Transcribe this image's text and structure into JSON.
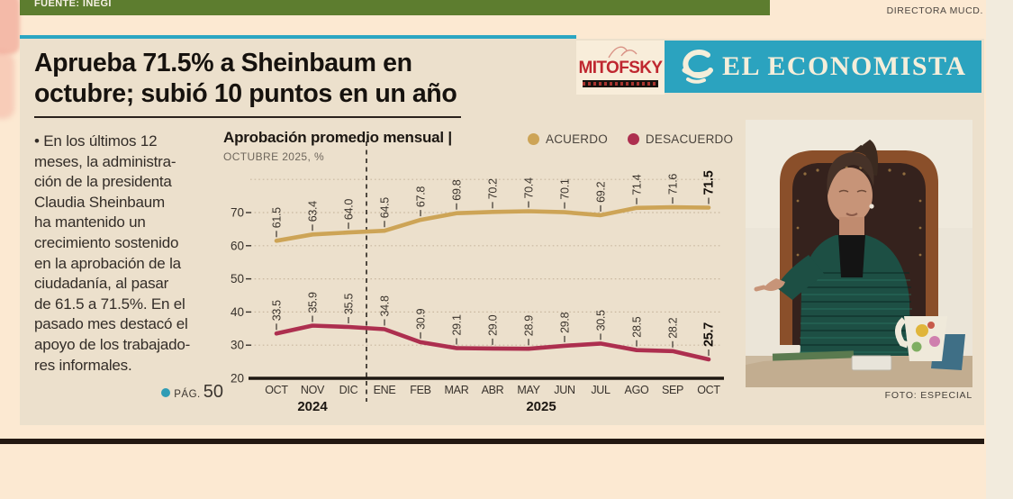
{
  "page": {
    "top_bar_label": "FUENTE: INEGI",
    "top_right_credit": "DIRECTORA MUCD.",
    "headline": "Aprueba 71.5% a Sheinbaum en\noctubre; subió 10 puntos en un año",
    "body_text": "• En los últimos 12\nmeses, la administra-\nción de la presidenta\nClaudia Sheinbaum\nha mantenido un\ncrecimiento sostenido\nen la aprobación de la\nciudadanía, al pasar\nde 61.5 a 71.5%. En el\npasado mes destacó el\napoyo de los trabajado-\nres informales.",
    "page_ref": {
      "label": "PÁG.",
      "number": "50"
    },
    "photo_caption": "FOTO: ESPECIAL",
    "logos": {
      "mitofsky": "MITOFSKY",
      "economista": "EL ECONOMISTA"
    },
    "colors": {
      "teal": "#2ba3bf",
      "green_bar": "#5d7d2f",
      "mitofsky_red": "#bf2730",
      "article_bg": "#ece0cc",
      "page_bg": "#fce9d2"
    }
  },
  "chart_data": {
    "type": "line",
    "title": "Aprobación promedio mensual |",
    "subtitle": "OCTUBRE 2025, %",
    "categories": [
      "OCT",
      "NOV",
      "DIC",
      "ENE",
      "FEB",
      "MAR",
      "ABR",
      "MAY",
      "JUN",
      "JUL",
      "AGO",
      "SEP",
      "OCT"
    ],
    "year_labels": [
      {
        "label": "2024",
        "index": 1
      },
      {
        "label": "2025",
        "index": 7.35
      }
    ],
    "series": [
      {
        "name": "ACUERDO",
        "color": "#cda456",
        "values": [
          61.5,
          63.4,
          64.0,
          64.5,
          67.8,
          69.8,
          70.2,
          70.4,
          70.1,
          69.2,
          71.4,
          71.6,
          71.5
        ]
      },
      {
        "name": "DESACUERDO",
        "color": "#ad2f4f",
        "values": [
          33.5,
          35.9,
          35.5,
          34.8,
          30.9,
          29.1,
          29.0,
          28.9,
          29.8,
          30.5,
          28.5,
          28.2,
          25.7
        ]
      }
    ],
    "ylim": [
      20,
      80
    ],
    "yticks": [
      20,
      30,
      40,
      50,
      60,
      70
    ],
    "divider_after_index": 2,
    "grid": "dotted-horizontal",
    "legend_position": "top-right",
    "label_style": "rotated-90-above-points, last value bold"
  }
}
